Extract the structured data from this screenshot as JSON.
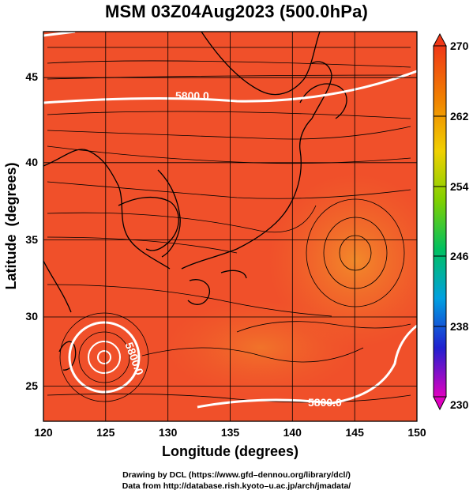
{
  "title": "MSM 03Z04Aug2023 (500.0hPa)",
  "x_axis": {
    "label": "Longitude (degrees)",
    "ticks": [
      "120",
      "125",
      "130",
      "135",
      "140",
      "145",
      "150"
    ],
    "range": [
      120,
      150
    ]
  },
  "y_axis": {
    "label": "Latitude  (degrees)",
    "ticks": [
      "25",
      "30",
      "35",
      "40",
      "45"
    ],
    "range": [
      22.5,
      47.5
    ]
  },
  "colorbar": {
    "ticks": [
      "270",
      "262",
      "254",
      "246",
      "238",
      "230"
    ],
    "range": [
      230,
      270
    ],
    "colors": [
      "#e000c0",
      "#2020d0",
      "#00a0e0",
      "#00c060",
      "#80d000",
      "#f0d000",
      "#f08000",
      "#f04020"
    ]
  },
  "contour_labels": {
    "north": "5800.0",
    "south": "5800.0",
    "typhoon": "5800.0"
  },
  "credits": {
    "line1": "Drawing by DCL (https://www.gfd–dennou.org/library/dcl/)",
    "line2": "Data from http://database.rish.kyoto–u.ac.jp/arch/jmadata/"
  },
  "map_data": {
    "field": "temperature_500hPa",
    "typhoon_center": [
      125.1,
      26.9
    ],
    "anticyclone_center": [
      145.0,
      33.5
    ]
  }
}
